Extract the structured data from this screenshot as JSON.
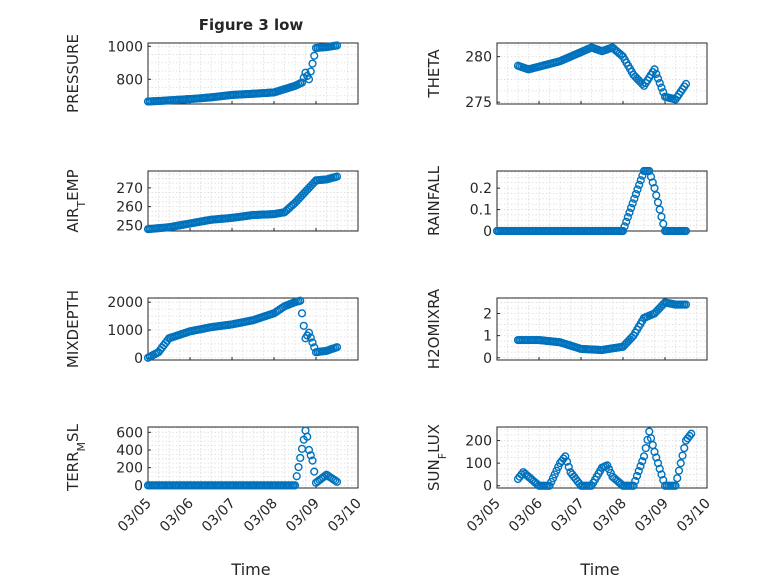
{
  "figure_title": "Figure 3 low",
  "date_tick_labels": [
    "03/05",
    "03/06",
    "03/07",
    "03/08",
    "03/09",
    "03/10"
  ],
  "xlabel": "Time",
  "marker_color": "#0072BD",
  "chart_data": [
    {
      "type": "scatter",
      "ylabel": "PRESSURE",
      "ylabel_sub": null,
      "ylim": [
        650,
        1020
      ],
      "yticks": [
        800,
        1000
      ],
      "x": [
        "03/05 00:00",
        "03/05 06:00",
        "03/05 12:00",
        "03/06 00:00",
        "03/06 12:00",
        "03/07 00:00",
        "03/07 12:00",
        "03/08 00:00",
        "03/08 06:00",
        "03/08 12:00",
        "03/08 16:00",
        "03/08 18:00",
        "03/08 20:00",
        "03/09 00:00",
        "03/09 06:00",
        "03/09 12:00"
      ],
      "y": [
        665,
        668,
        672,
        680,
        690,
        705,
        712,
        720,
        740,
        760,
        780,
        840,
        800,
        990,
        995,
        1005
      ]
    },
    {
      "type": "scatter",
      "ylabel": "THETA",
      "ylabel_sub": null,
      "ylim": [
        274.8,
        281.5
      ],
      "yticks": [
        275,
        280
      ],
      "x": [
        "03/05 12:00",
        "03/05 18:00",
        "03/06 00:00",
        "03/06 12:00",
        "03/07 00:00",
        "03/07 06:00",
        "03/07 12:00",
        "03/07 18:00",
        "03/08 00:00",
        "03/08 06:00",
        "03/08 12:00",
        "03/08 18:00",
        "03/09 00:00",
        "03/09 06:00",
        "03/09 12:00"
      ],
      "y": [
        279.0,
        278.6,
        278.9,
        279.5,
        280.5,
        281.0,
        280.6,
        281.0,
        280.0,
        278.0,
        276.8,
        278.6,
        275.6,
        275.3,
        277.0
      ]
    },
    {
      "type": "scatter",
      "ylabel": "AIR",
      "ylabel_sub": "T",
      "ylabel_tail": "EMP",
      "ylim": [
        247,
        279
      ],
      "yticks": [
        250,
        260,
        270
      ],
      "x": [
        "03/05 00:00",
        "03/05 12:00",
        "03/06 00:00",
        "03/06 12:00",
        "03/07 00:00",
        "03/07 12:00",
        "03/08 00:00",
        "03/08 06:00",
        "03/08 12:00",
        "03/08 18:00",
        "03/09 00:00",
        "03/09 06:00",
        "03/09 12:00"
      ],
      "y": [
        248,
        249,
        251,
        253,
        254,
        255.5,
        256,
        257,
        262,
        268,
        274,
        274.5,
        276
      ]
    },
    {
      "type": "scatter",
      "ylabel": "RAINFALL",
      "ylabel_sub": null,
      "ylim": [
        0,
        0.28
      ],
      "yticks": [
        0,
        0.1,
        0.2
      ],
      "x": [
        "03/05 00:00",
        "03/05 12:00",
        "03/06 00:00",
        "03/06 12:00",
        "03/07 00:00",
        "03/07 12:00",
        "03/08 00:00",
        "03/08 12:00",
        "03/08 15:00",
        "03/08 18:00",
        "03/09 00:00",
        "03/09 12:00"
      ],
      "y": [
        0,
        0,
        0,
        0,
        0,
        0,
        0,
        0.28,
        0.28,
        0.2,
        0,
        0
      ]
    },
    {
      "type": "scatter",
      "ylabel": "MIXDEPTH",
      "ylabel_sub": null,
      "ylim": [
        -80,
        2150
      ],
      "yticks": [
        0,
        1000,
        2000
      ],
      "x": [
        "03/05 00:00",
        "03/05 06:00",
        "03/05 12:00",
        "03/06 00:00",
        "03/06 12:00",
        "03/07 00:00",
        "03/07 12:00",
        "03/08 00:00",
        "03/08 06:00",
        "03/08 12:00",
        "03/08 15:00",
        "03/08 18:00",
        "03/08 20:00",
        "03/09 00:00",
        "03/09 06:00",
        "03/09 12:00"
      ],
      "y": [
        0,
        200,
        700,
        950,
        1100,
        1200,
        1350,
        1600,
        1850,
        2000,
        2050,
        700,
        900,
        200,
        250,
        380
      ]
    },
    {
      "type": "scatter",
      "ylabel": "H2OMIXRA",
      "ylabel_sub": null,
      "ylim": [
        -0.1,
        2.7
      ],
      "yticks": [
        0,
        1,
        2
      ],
      "x": [
        "03/05 12:00",
        "03/06 00:00",
        "03/06 12:00",
        "03/07 00:00",
        "03/07 12:00",
        "03/08 00:00",
        "03/08 06:00",
        "03/08 12:00",
        "03/08 18:00",
        "03/09 00:00",
        "03/09 06:00",
        "03/09 12:00"
      ],
      "y": [
        0.8,
        0.8,
        0.7,
        0.4,
        0.35,
        0.5,
        1.0,
        1.8,
        2.0,
        2.5,
        2.4,
        2.4
      ]
    },
    {
      "type": "scatter",
      "ylabel": "TERR",
      "ylabel_sub": "M",
      "ylabel_tail": "SL",
      "ylim": [
        -30,
        660
      ],
      "yticks": [
        0,
        200,
        400,
        600
      ],
      "x": [
        "03/05 00:00",
        "03/05 12:00",
        "03/06 00:00",
        "03/06 12:00",
        "03/07 00:00",
        "03/07 12:00",
        "03/08 00:00",
        "03/08 12:00",
        "03/08 18:00",
        "03/08 19:00",
        "03/08 20:00",
        "03/08 22:00",
        "03/09 00:00",
        "03/09 06:00",
        "03/09 12:00"
      ],
      "y": [
        0,
        0,
        0,
        0,
        0,
        0,
        0,
        0,
        620,
        550,
        400,
        280,
        30,
        120,
        40
      ]
    },
    {
      "type": "scatter",
      "ylabel": "SUN",
      "ylabel_sub": "F",
      "ylabel_tail": "LUX",
      "ylim": [
        -10,
        260
      ],
      "yticks": [
        0,
        100,
        200
      ],
      "x": [
        "03/05 12:00",
        "03/05 15:00",
        "03/05 18:00",
        "03/06 00:00",
        "03/06 06:00",
        "03/06 12:00",
        "03/06 15:00",
        "03/06 18:00",
        "03/07 00:00",
        "03/07 06:00",
        "03/07 12:00",
        "03/07 15:00",
        "03/07 18:00",
        "03/08 00:00",
        "03/08 06:00",
        "03/08 12:00",
        "03/08 15:00",
        "03/08 18:00",
        "03/09 00:00",
        "03/09 06:00",
        "03/09 12:00",
        "03/09 15:00"
      ],
      "y": [
        30,
        60,
        40,
        0,
        0,
        100,
        130,
        60,
        0,
        0,
        80,
        90,
        40,
        0,
        0,
        130,
        240,
        150,
        0,
        0,
        200,
        230
      ]
    }
  ]
}
